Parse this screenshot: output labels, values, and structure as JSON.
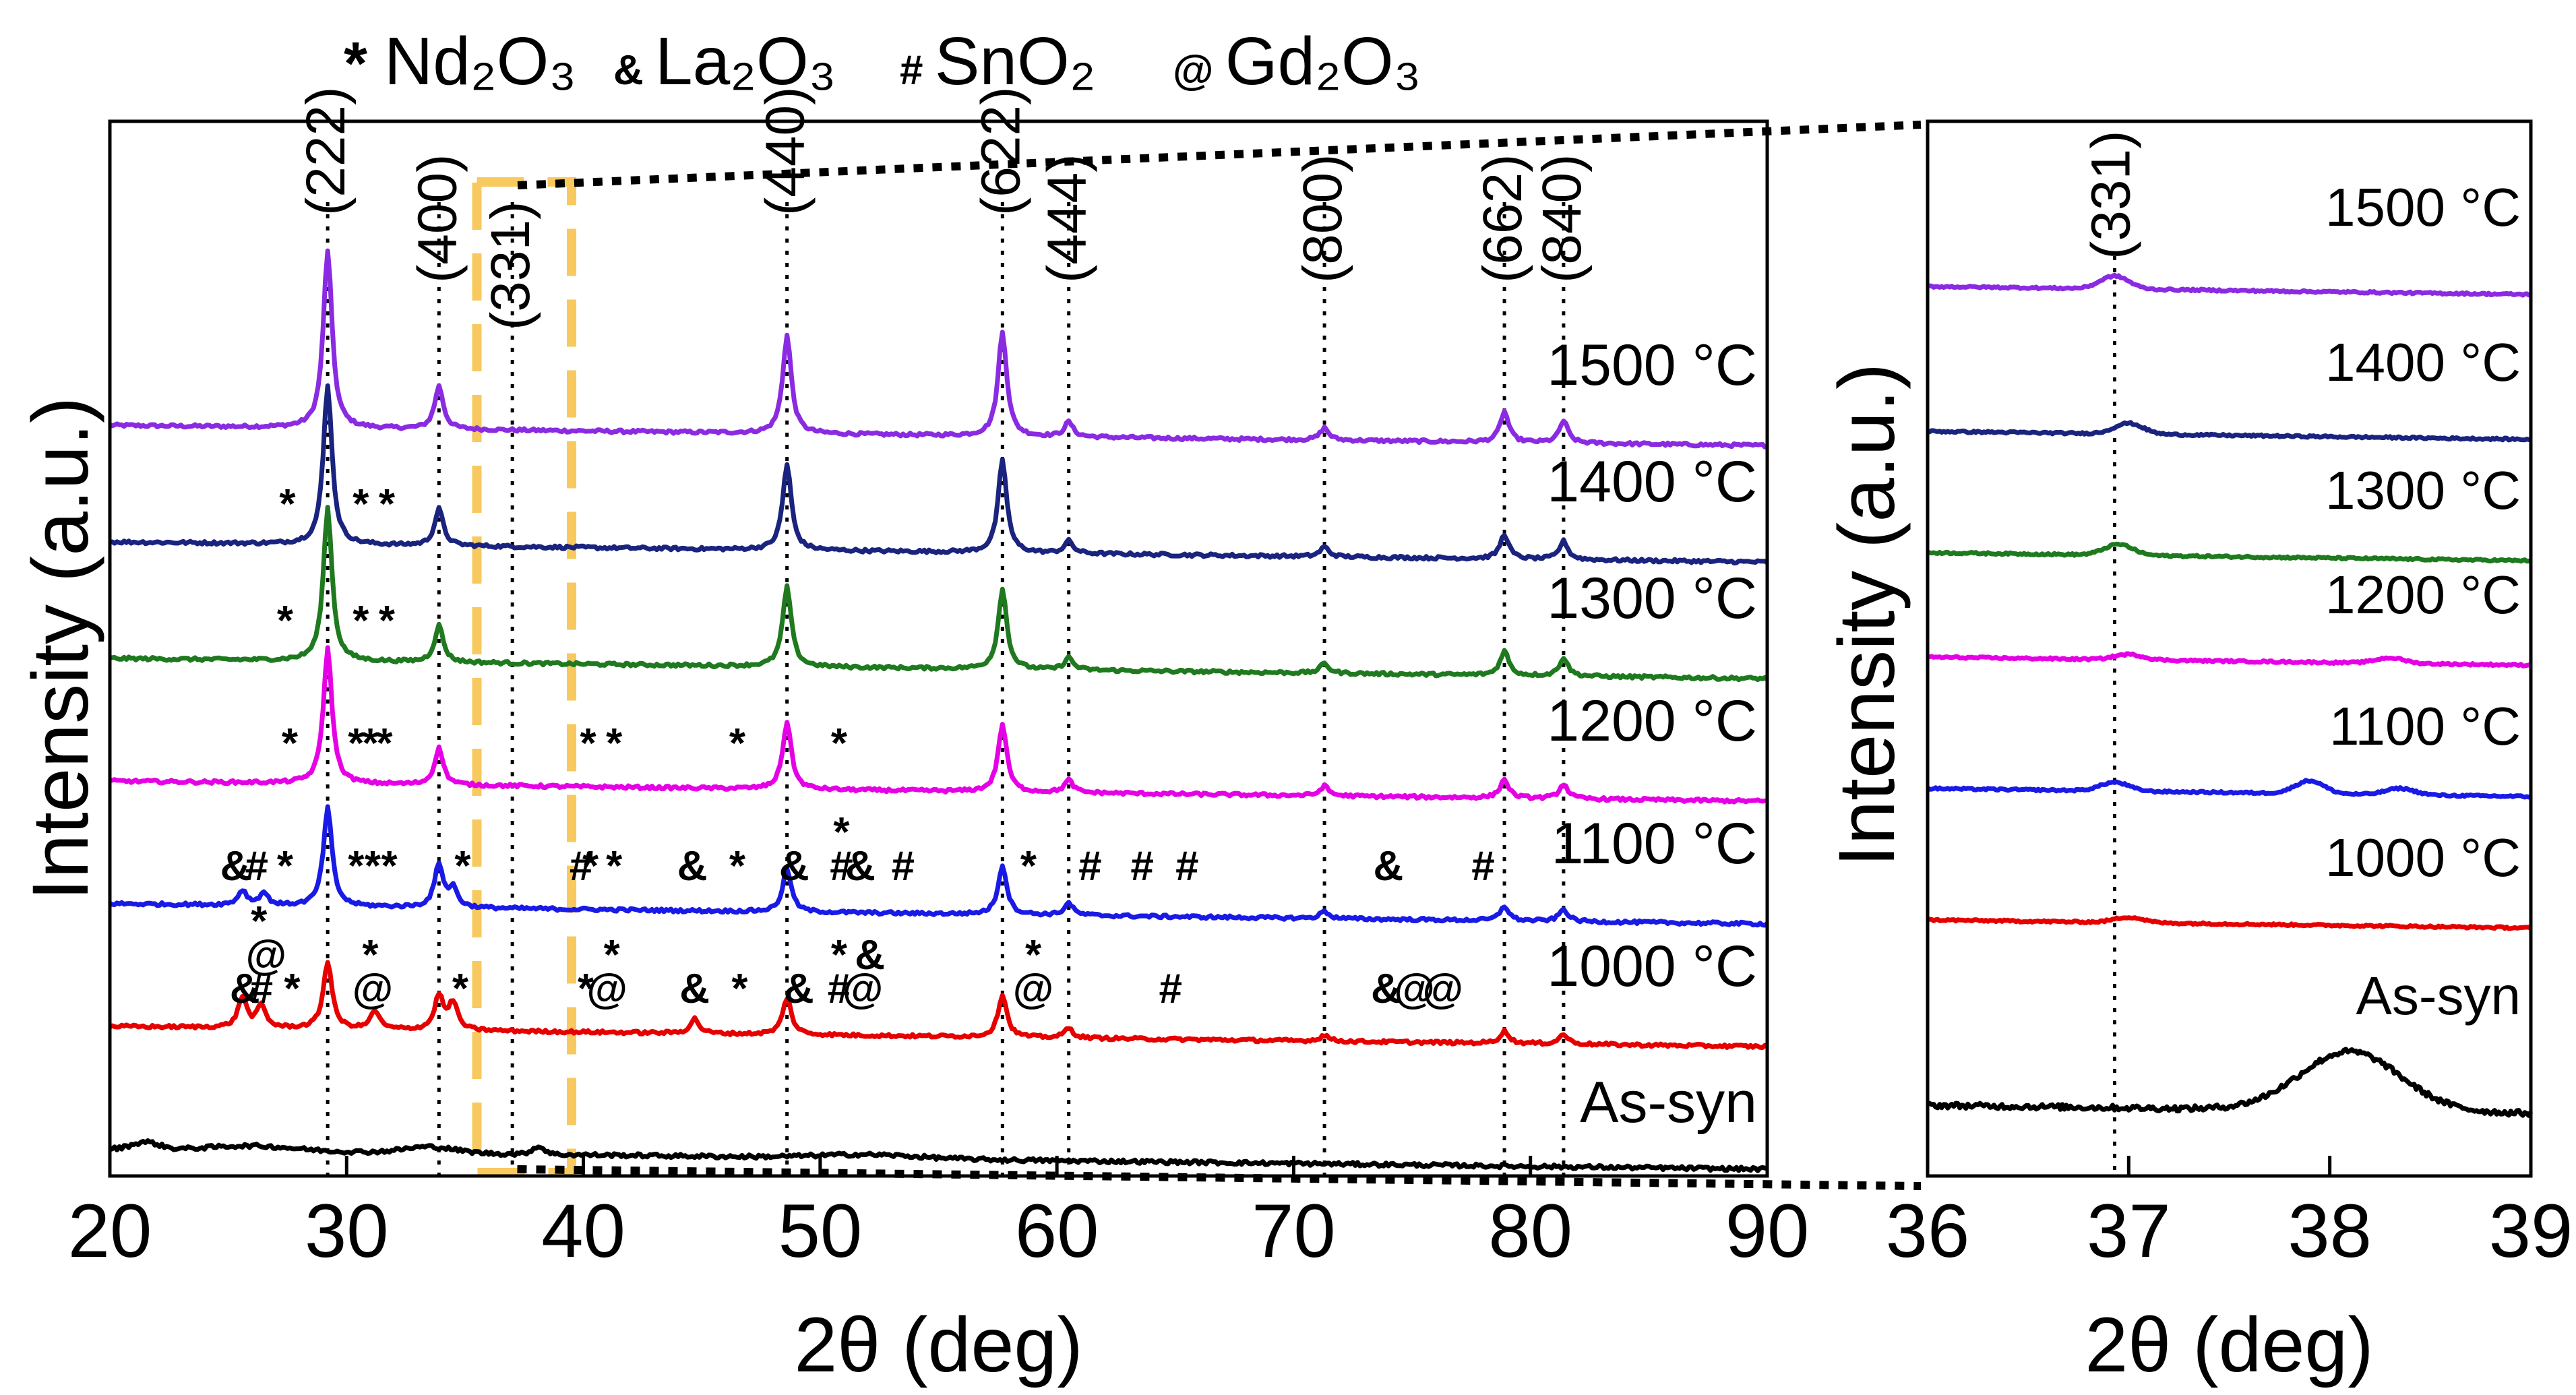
{
  "legend": [
    {
      "symbol": "*",
      "phase": "Nd₂O₃"
    },
    {
      "symbol": "&",
      "phase": "La₂O₃"
    },
    {
      "symbol": "#",
      "phase": "SnO₂"
    },
    {
      "symbol": "@",
      "phase": "Gd₂O₃"
    }
  ],
  "chart_data": [
    {
      "type": "line",
      "panel": "main",
      "xlabel": "2θ (deg)",
      "ylabel": "Intensity (a.u.)",
      "xlim": [
        20,
        90
      ],
      "xticks": [
        20,
        30,
        40,
        50,
        60,
        70,
        80,
        90
      ],
      "reference_lines": [
        {
          "x": 29.2,
          "hkl": "(222)"
        },
        {
          "x": 33.9,
          "hkl": "(400)"
        },
        {
          "x": 37.0,
          "hkl": "(331)"
        },
        {
          "x": 48.6,
          "hkl": "(440)"
        },
        {
          "x": 57.7,
          "hkl": "(622)"
        },
        {
          "x": 60.5,
          "hkl": "(444)"
        },
        {
          "x": 71.3,
          "hkl": "(800)"
        },
        {
          "x": 78.9,
          "hkl": "(662)"
        },
        {
          "x": 81.4,
          "hkl": "(840)"
        }
      ],
      "zoom_region": [
        35.5,
        39.5
      ],
      "series": [
        {
          "name": "1500 °C",
          "color": "#8a2be2",
          "offset": 5.9,
          "peaks": [
            [
              29.2,
              1.45
            ],
            [
              33.9,
              0.35
            ],
            [
              48.6,
              0.8
            ],
            [
              57.7,
              0.85
            ],
            [
              60.5,
              0.12
            ],
            [
              71.3,
              0.1
            ],
            [
              78.9,
              0.25
            ],
            [
              81.4,
              0.18
            ]
          ],
          "markers": []
        },
        {
          "name": "1400 °C",
          "color": "#1a237e",
          "offset": 4.95,
          "peaks": [
            [
              29.2,
              1.3
            ],
            [
              33.9,
              0.3
            ],
            [
              48.6,
              0.7
            ],
            [
              57.7,
              0.75
            ],
            [
              60.5,
              0.1
            ],
            [
              71.3,
              0.08
            ],
            [
              78.9,
              0.2
            ],
            [
              81.4,
              0.15
            ]
          ],
          "markers": [
            {
              "x": 27.5,
              "s": "*"
            },
            {
              "x": 30.6,
              "s": "*"
            },
            {
              "x": 31.7,
              "s": "*"
            }
          ]
        },
        {
          "name": "1300 °C",
          "color": "#1f7a1f",
          "offset": 4.0,
          "peaks": [
            [
              29.2,
              1.25
            ],
            [
              33.9,
              0.3
            ],
            [
              48.6,
              0.65
            ],
            [
              57.7,
              0.65
            ],
            [
              60.5,
              0.1
            ],
            [
              71.3,
              0.08
            ],
            [
              78.9,
              0.2
            ],
            [
              81.4,
              0.15
            ]
          ],
          "markers": [
            {
              "x": 27.4,
              "s": "*"
            },
            {
              "x": 30.6,
              "s": "*"
            },
            {
              "x": 31.7,
              "s": "*"
            }
          ]
        },
        {
          "name": "1200 °C",
          "color": "#e600e6",
          "offset": 3.0,
          "peaks": [
            [
              29.2,
              1.1
            ],
            [
              33.9,
              0.3
            ],
            [
              48.6,
              0.55
            ],
            [
              57.7,
              0.55
            ],
            [
              60.5,
              0.1
            ],
            [
              71.3,
              0.08
            ],
            [
              78.9,
              0.15
            ],
            [
              81.4,
              0.12
            ]
          ],
          "markers": [
            {
              "x": 27.6,
              "s": "*"
            },
            {
              "x": 30.4,
              "s": "*"
            },
            {
              "x": 31.0,
              "s": "*"
            },
            {
              "x": 31.6,
              "s": "*"
            },
            {
              "x": 40.2,
              "s": "*"
            },
            {
              "x": 41.3,
              "s": "*"
            },
            {
              "x": 46.5,
              "s": "*"
            },
            {
              "x": 50.8,
              "s": "*"
            }
          ]
        },
        {
          "name": "1100 °C",
          "color": "#1a1ae6",
          "offset": 2.0,
          "peaks": [
            [
              25.6,
              0.12
            ],
            [
              26.5,
              0.1
            ],
            [
              29.2,
              0.8
            ],
            [
              33.9,
              0.35
            ],
            [
              34.5,
              0.15
            ],
            [
              48.6,
              0.35
            ],
            [
              57.7,
              0.4
            ],
            [
              60.5,
              0.1
            ],
            [
              71.3,
              0.06
            ],
            [
              78.9,
              0.12
            ],
            [
              81.4,
              0.1
            ]
          ],
          "markers": [
            {
              "x": 25.3,
              "s": "&"
            },
            {
              "x": 26.2,
              "s": "#"
            },
            {
              "x": 27.4,
              "s": "*"
            },
            {
              "x": 30.4,
              "s": "*"
            },
            {
              "x": 31.1,
              "s": "*"
            },
            {
              "x": 31.8,
              "s": "*"
            },
            {
              "x": 34.9,
              "s": "*"
            },
            {
              "x": 39.9,
              "s": "#"
            },
            {
              "x": 40.3,
              "s": "*"
            },
            {
              "x": 41.3,
              "s": "*"
            },
            {
              "x": 44.6,
              "s": "&"
            },
            {
              "x": 46.5,
              "s": "*"
            },
            {
              "x": 48.9,
              "s": "&"
            },
            {
              "x": 50.9,
              "s": "#"
            },
            {
              "x": 50.9,
              "s": "*"
            },
            {
              "x": 51.7,
              "s": "&"
            },
            {
              "x": 53.5,
              "s": "#"
            },
            {
              "x": 58.8,
              "s": "*"
            },
            {
              "x": 61.4,
              "s": "#"
            },
            {
              "x": 63.6,
              "s": "#"
            },
            {
              "x": 65.5,
              "s": "#"
            },
            {
              "x": 74.0,
              "s": "&"
            },
            {
              "x": 78.0,
              "s": "#"
            }
          ]
        },
        {
          "name": "1000 °C",
          "color": "#e60000",
          "offset": 1.0,
          "peaks": [
            [
              25.6,
              0.25
            ],
            [
              26.4,
              0.18
            ],
            [
              29.2,
              0.55
            ],
            [
              31.2,
              0.15
            ],
            [
              33.9,
              0.28
            ],
            [
              34.5,
              0.22
            ],
            [
              44.7,
              0.12
            ],
            [
              48.6,
              0.3
            ],
            [
              57.7,
              0.35
            ],
            [
              60.5,
              0.08
            ],
            [
              71.3,
              0.05
            ],
            [
              78.9,
              0.1
            ],
            [
              81.4,
              0.08
            ]
          ],
          "markers": [
            {
              "x": 25.7,
              "s": "&"
            },
            {
              "x": 26.4,
              "s": "#"
            },
            {
              "x": 26.6,
              "s": "@"
            },
            {
              "x": 26.3,
              "s": "*"
            },
            {
              "x": 27.7,
              "s": "*"
            },
            {
              "x": 31.1,
              "s": "@"
            },
            {
              "x": 31.0,
              "s": "*"
            },
            {
              "x": 34.8,
              "s": "*"
            },
            {
              "x": 40.1,
              "s": "*"
            },
            {
              "x": 41.0,
              "s": "@"
            },
            {
              "x": 41.2,
              "s": "*"
            },
            {
              "x": 44.7,
              "s": "&"
            },
            {
              "x": 46.6,
              "s": "*"
            },
            {
              "x": 49.1,
              "s": "&"
            },
            {
              "x": 50.8,
              "s": "#"
            },
            {
              "x": 51.8,
              "s": "@"
            },
            {
              "x": 50.8,
              "s": "*"
            },
            {
              "x": 52.1,
              "s": "&"
            },
            {
              "x": 59.0,
              "s": "@"
            },
            {
              "x": 59.0,
              "s": "*"
            },
            {
              "x": 64.8,
              "s": "#"
            },
            {
              "x": 73.9,
              "s": "&"
            },
            {
              "x": 75.1,
              "s": "@"
            },
            {
              "x": 76.3,
              "s": "@"
            }
          ]
        },
        {
          "name": "As-syn",
          "color": "#000000",
          "offset": 0.0,
          "peaks": [],
          "markers": []
        }
      ]
    },
    {
      "type": "line",
      "panel": "inset",
      "xlabel": "2θ (deg)",
      "ylabel": "Intensity (a.u.)",
      "xlim": [
        36,
        39
      ],
      "xticks": [
        36,
        37,
        38,
        39
      ],
      "reference_lines": [
        {
          "x": 36.93,
          "hkl": "(331)"
        }
      ],
      "series": [
        {
          "name": "1500 °C",
          "color": "#8a2be2",
          "bump": [
            [
              36.93,
              0.12
            ]
          ]
        },
        {
          "name": "1400 °C",
          "color": "#1a237e",
          "bump": [
            [
              37.0,
              0.1
            ]
          ]
        },
        {
          "name": "1300 °C",
          "color": "#1f7a1f",
          "bump": [
            [
              36.95,
              0.1
            ]
          ]
        },
        {
          "name": "1200 °C",
          "color": "#e600e6",
          "bump": [
            [
              37.0,
              0.05
            ],
            [
              38.3,
              0.05
            ]
          ]
        },
        {
          "name": "1100 °C",
          "color": "#1a1ae6",
          "bump": [
            [
              36.93,
              0.08
            ],
            [
              37.9,
              0.12
            ],
            [
              38.35,
              0.06
            ]
          ]
        },
        {
          "name": "1000 °C",
          "color": "#e60000",
          "bump": [
            [
              37.0,
              0.05
            ]
          ]
        },
        {
          "name": "As-syn",
          "color": "#000000",
          "bump": [
            [
              38.1,
              0.55
            ]
          ]
        }
      ]
    }
  ]
}
